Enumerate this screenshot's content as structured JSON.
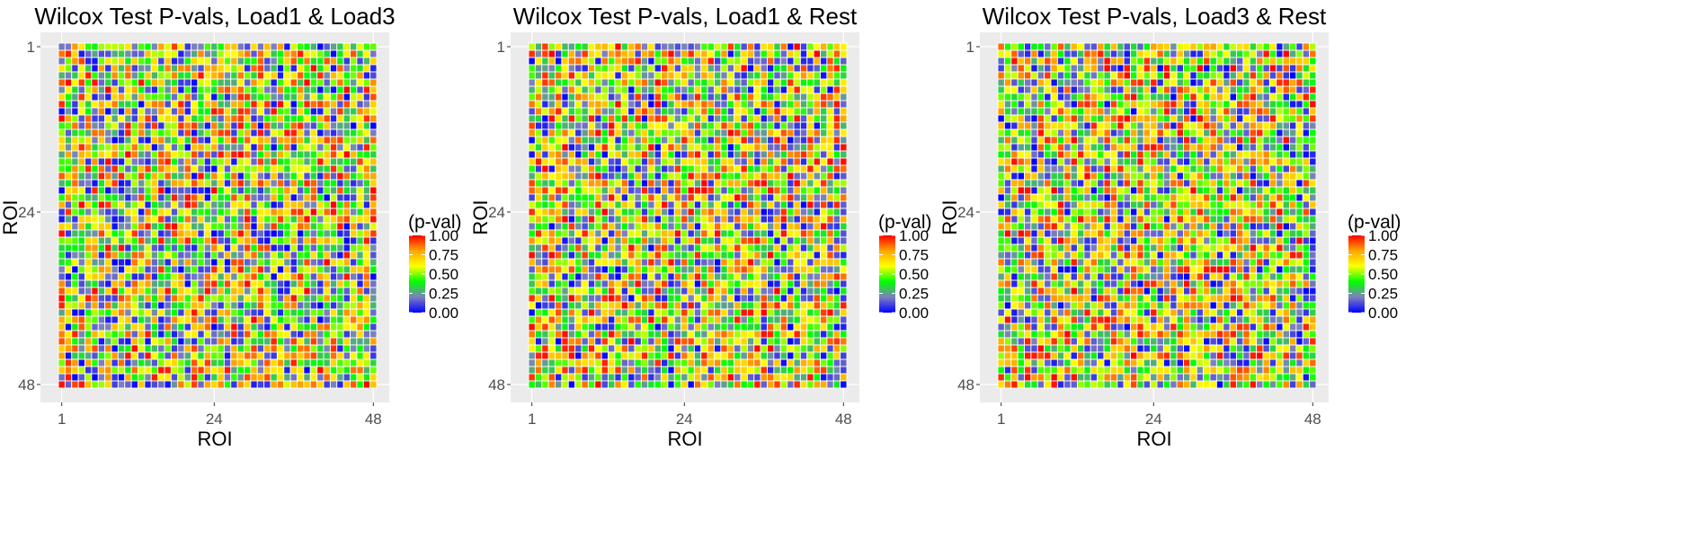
{
  "colors": {
    "panel_background": "#ebebeb",
    "gridline": "#ffffff",
    "tile_border": "#ffffff",
    "gradient_stops": [
      "#0000ff",
      "#7f7fbf",
      "#00ff00",
      "#ffff00",
      "#ffa500",
      "#ff0000"
    ]
  },
  "chart_data": [
    {
      "type": "heatmap",
      "title": "Wilcox Test P-vals, Load1 & Load3",
      "xlabel": "ROI",
      "ylabel": "ROI",
      "x_ticks": [
        "1",
        "24",
        "48"
      ],
      "y_ticks": [
        "1",
        "24",
        "48"
      ],
      "n_rows": 48,
      "n_cols": 48,
      "legend": {
        "title": "(p-val)",
        "ticks": [
          "0.00",
          "0.25",
          "0.50",
          "0.75",
          "1.00"
        ],
        "range": [
          0,
          1
        ],
        "position": "right"
      },
      "grid": true,
      "seed": 1337
    },
    {
      "type": "heatmap",
      "title": "Wilcox Test P-vals, Load1 & Rest",
      "xlabel": "ROI",
      "ylabel": "ROI",
      "x_ticks": [
        "1",
        "24",
        "48"
      ],
      "y_ticks": [
        "1",
        "24",
        "48"
      ],
      "n_rows": 48,
      "n_cols": 48,
      "legend": {
        "title": "(p-val)",
        "ticks": [
          "0.00",
          "0.25",
          "0.50",
          "0.75",
          "1.00"
        ],
        "range": [
          0,
          1
        ],
        "position": "right"
      },
      "grid": true,
      "seed": 4242
    },
    {
      "type": "heatmap",
      "title": "Wilcox Test P-vals, Load3 & Rest",
      "xlabel": "ROI",
      "ylabel": "ROI",
      "x_ticks": [
        "1",
        "24",
        "48"
      ],
      "y_ticks": [
        "1",
        "24",
        "48"
      ],
      "n_rows": 48,
      "n_cols": 48,
      "legend": {
        "title": "(p-val)",
        "ticks": [
          "0.00",
          "0.25",
          "0.50",
          "0.75",
          "1.00"
        ],
        "range": [
          0,
          1
        ],
        "position": "right"
      },
      "grid": true,
      "seed": 9001
    }
  ]
}
